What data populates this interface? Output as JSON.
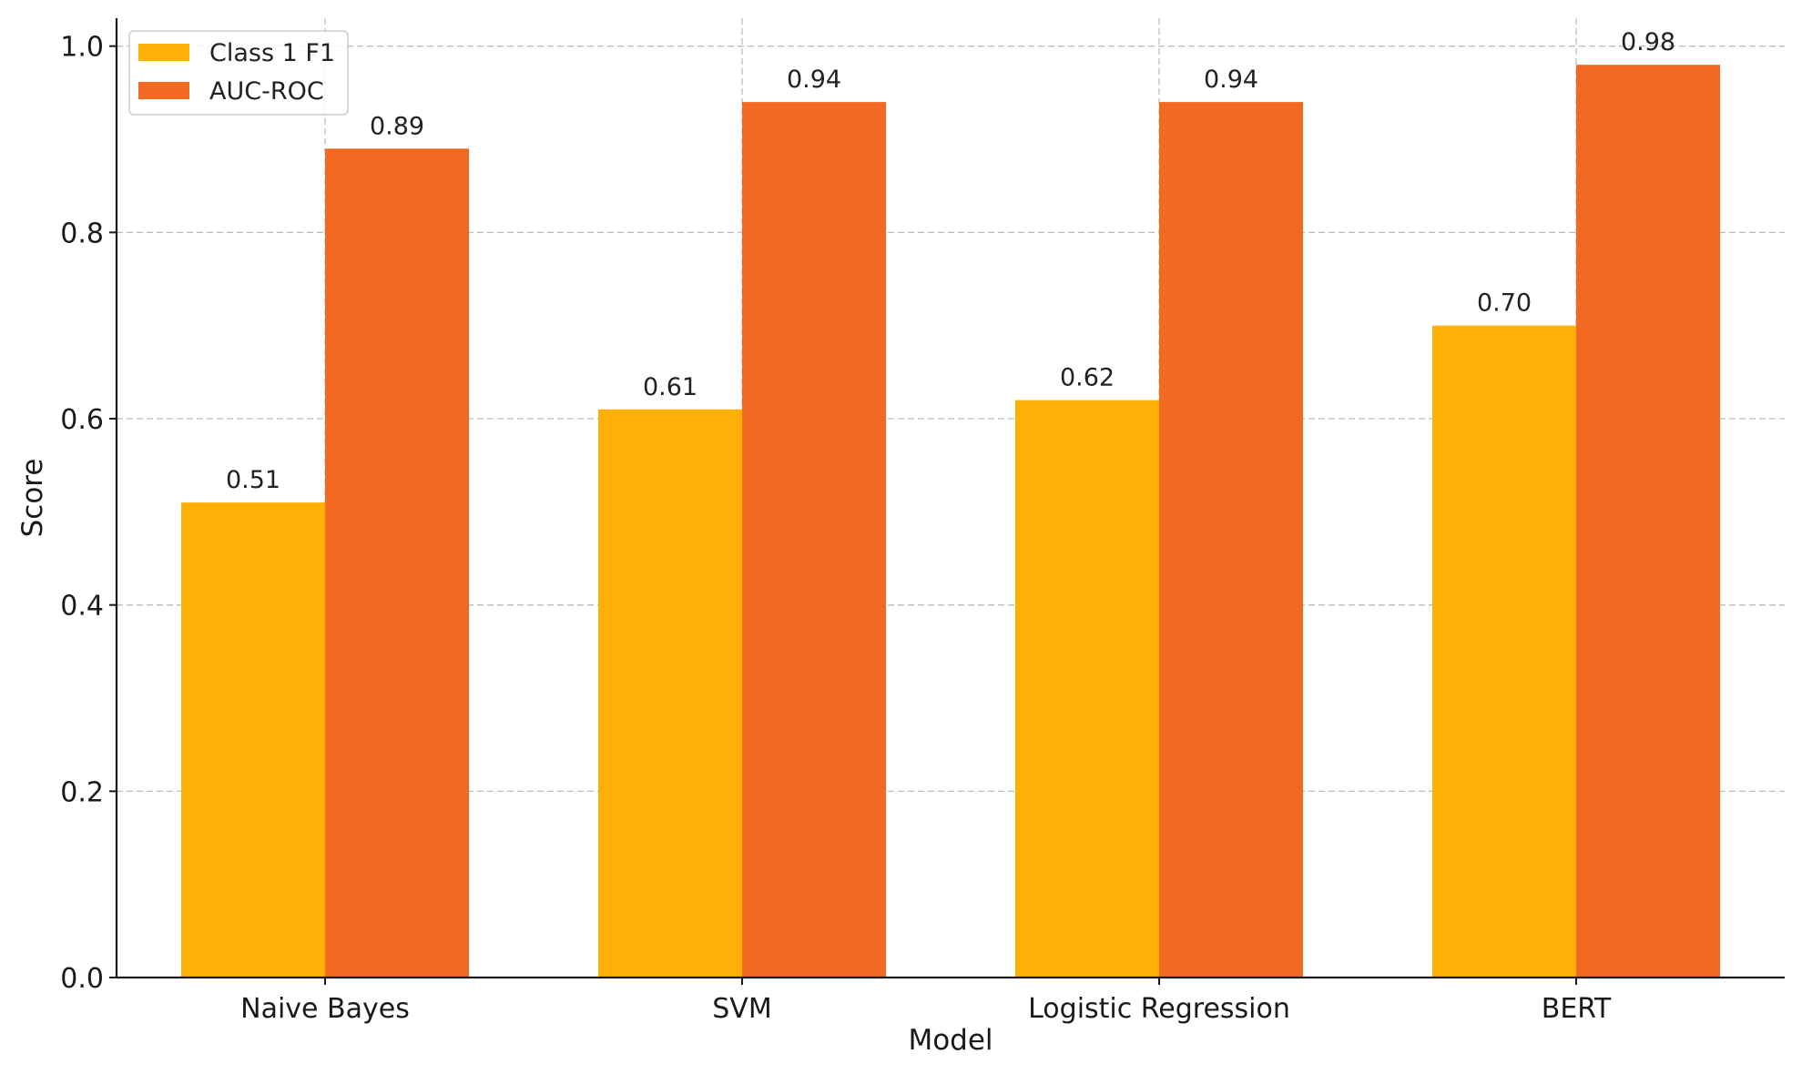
{
  "chart_data": {
    "type": "bar",
    "title": "",
    "xlabel": "Model",
    "ylabel": "Score",
    "categories": [
      "Naive Bayes",
      "SVM",
      "Logistic Regression",
      "BERT"
    ],
    "series": [
      {
        "name": "Class 1 F1",
        "color": "#FFB006",
        "values": [
          0.51,
          0.61,
          0.62,
          0.7
        ],
        "labels": [
          "0.51",
          "0.61",
          "0.62",
          "0.70"
        ]
      },
      {
        "name": "AUC-ROC",
        "color": "#F26A22",
        "values": [
          0.89,
          0.94,
          0.94,
          0.98
        ],
        "labels": [
          "0.89",
          "0.94",
          "0.94",
          "0.98"
        ]
      }
    ],
    "ylim": [
      0,
      1.03
    ],
    "yticks": [
      0.0,
      0.2,
      0.4,
      0.6,
      0.8,
      1.0
    ],
    "ytick_labels": [
      "0.0",
      "0.2",
      "0.4",
      "0.6",
      "0.8",
      "1.0"
    ],
    "grid": true,
    "legend_position": "top-left"
  }
}
